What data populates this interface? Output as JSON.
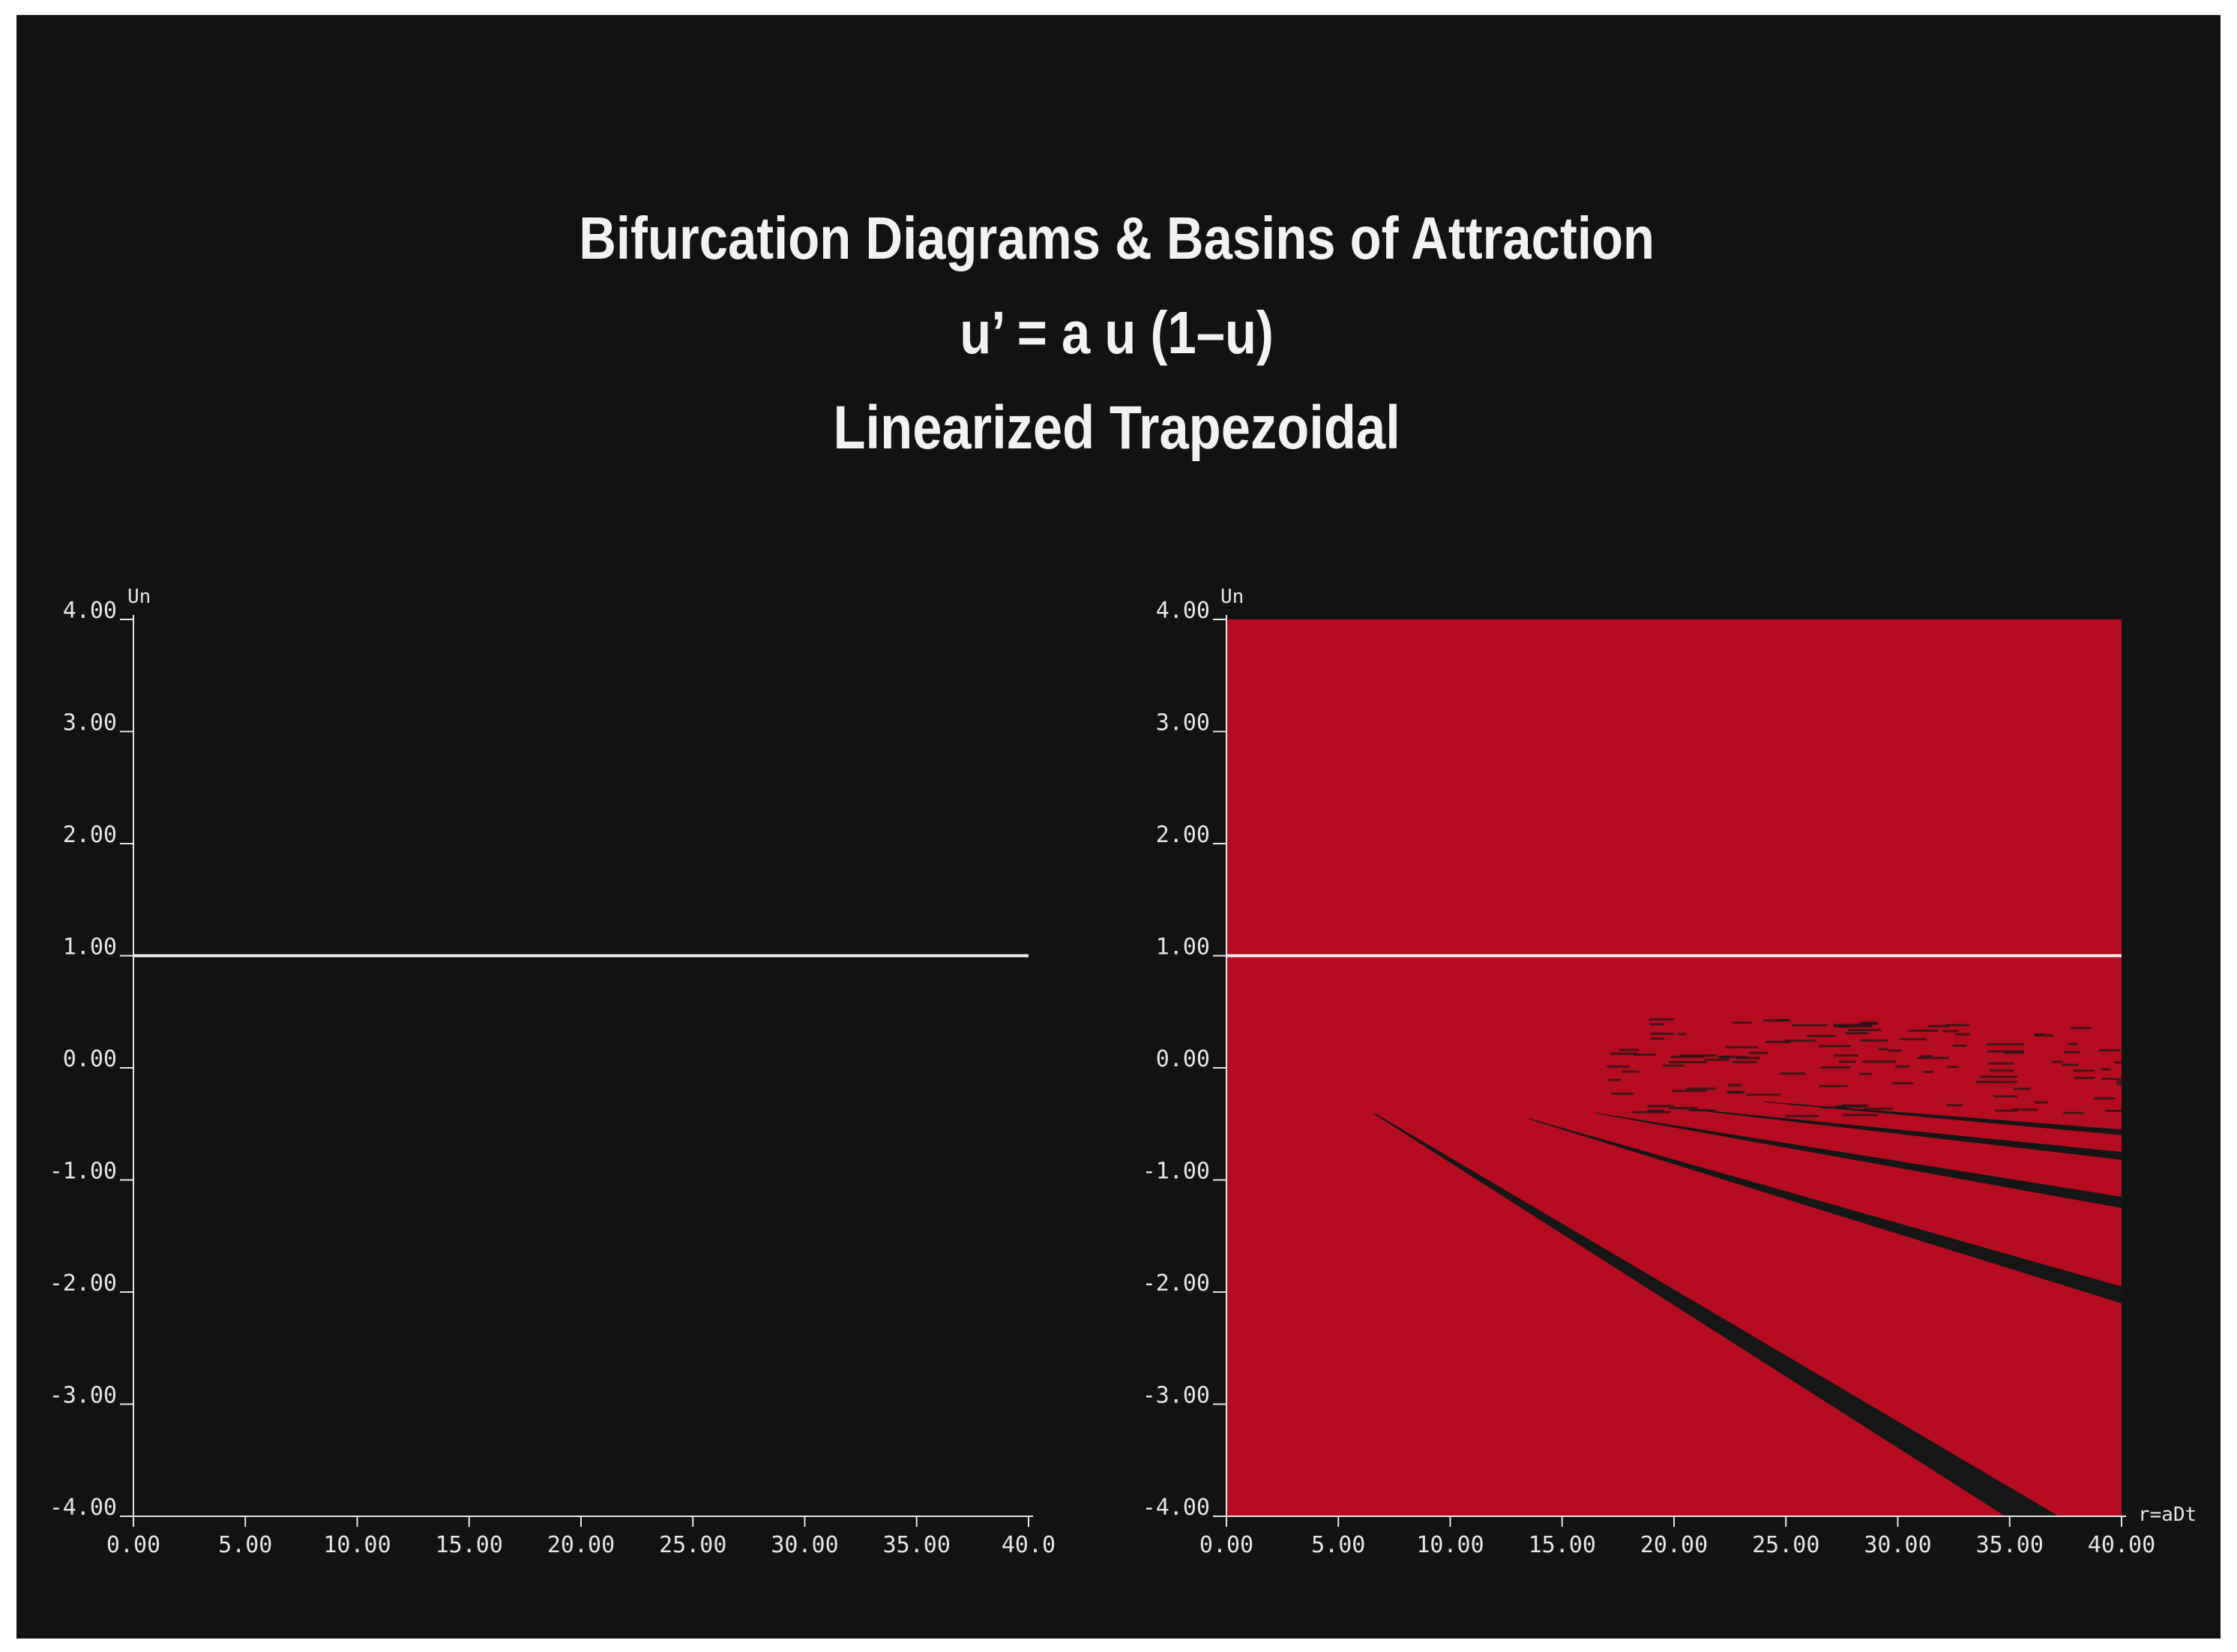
{
  "colors": {
    "background": "#121212",
    "axis": "#e6e6e6",
    "fixed_point_line": "#f0f0f0",
    "basin_fill": "#b50c1f",
    "basin_gap": "#161616"
  },
  "header": {
    "title": "Bifurcation Diagrams  &  Basins of Attraction",
    "equation": "u’ = a u (1–u)",
    "method": "Linearized Trapezoidal"
  },
  "chart_data": [
    {
      "type": "line",
      "name_key": "left",
      "ylabel": "Un",
      "xlabel": "",
      "xlim": [
        0,
        40
      ],
      "ylim": [
        -4,
        4
      ],
      "x_ticks": [
        "0.00",
        "5.00",
        "10.00",
        "15.00",
        "20.00",
        "25.00",
        "30.00",
        "35.00",
        "40.0"
      ],
      "y_ticks": [
        "4.00",
        "3.00",
        "2.00",
        "1.00",
        "0.00",
        "-1.00",
        "-2.00",
        "-3.00",
        "-4.00"
      ],
      "series": [
        {
          "x": [
            0,
            40
          ],
          "y": [
            1,
            1
          ]
        }
      ]
    },
    {
      "type": "area",
      "name_key": "right",
      "ylabel": "Un",
      "xlabel": "r=aDt",
      "xlim": [
        0,
        40
      ],
      "ylim": [
        -4,
        4
      ],
      "x_ticks": [
        "0.00",
        "5.00",
        "10.00",
        "15.00",
        "20.00",
        "25.00",
        "30.00",
        "35.00",
        "40.00"
      ],
      "y_ticks": [
        "4.00",
        "3.00",
        "2.00",
        "1.00",
        "0.00",
        "-1.00",
        "-2.00",
        "-3.00",
        "-4.00"
      ],
      "series": [
        {
          "x": [
            0,
            40
          ],
          "y": [
            1,
            1
          ]
        }
      ],
      "basin_region": {
        "x": [
          0,
          40
        ],
        "y": [
          -4,
          4
        ]
      },
      "non_basin_bands": [
        {
          "x_start": 6.5,
          "y_start": -0.4,
          "x_end": 34.8,
          "y_end": -4.0,
          "x_end2": 37.2,
          "y_end_low": -4.0
        },
        {
          "x_start": 13.5,
          "y_start": -0.45,
          "x_end": 40,
          "y_end": -1.95,
          "y_end_low": -2.1
        },
        {
          "x_start": 16.5,
          "y_start": -0.4,
          "x_end": 40,
          "y_end": -1.15,
          "y_end_low": -1.25
        },
        {
          "x_start": 20,
          "y_start": -0.35,
          "x_end": 40,
          "y_end": -0.75,
          "y_end_low": -0.82
        },
        {
          "x_start": 24,
          "y_start": -0.3,
          "x_end": 40,
          "y_end": -0.55,
          "y_end_low": -0.6
        }
      ]
    }
  ]
}
